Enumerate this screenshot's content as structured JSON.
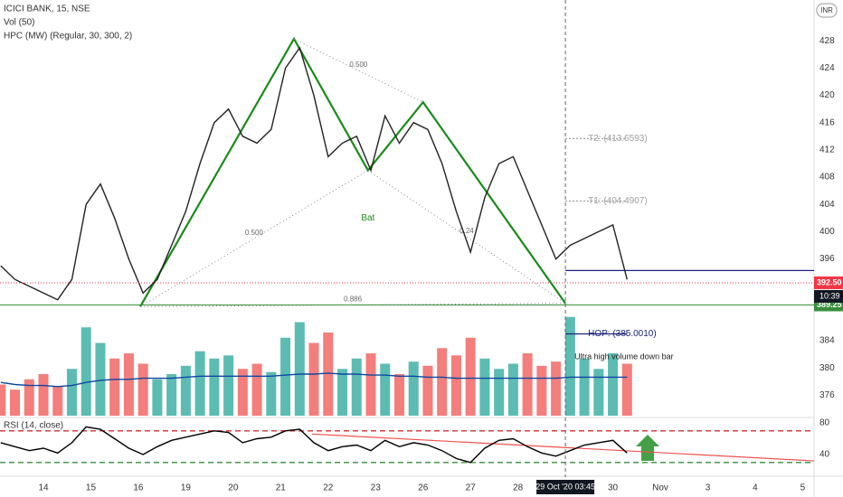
{
  "chart_data": [
    {
      "type": "line",
      "title": "ICICI BANK, 15, NSE",
      "subtitle": "Vol (50)",
      "indicator": "HPC (MW) (Regular, 30, 300, 2)",
      "currency": "INR",
      "color": "#222222",
      "x": [
        -0.9,
        -0.6,
        -0.3,
        0,
        0.3,
        0.6,
        0.9,
        1.2,
        1.5,
        1.8,
        2.1,
        2.4,
        2.7,
        3.0,
        3.3,
        3.6,
        3.9,
        4.2,
        4.5,
        4.8,
        5.1,
        5.4,
        5.7,
        6.0,
        6.3,
        6.6,
        6.9,
        7.2,
        7.5,
        7.8,
        8.1,
        8.4,
        8.7,
        9.0,
        9.3,
        9.6,
        9.9,
        10.2,
        10.5,
        10.8,
        11.1,
        11.4,
        11.7,
        12.0,
        12.3
      ],
      "values": [
        395,
        393,
        392,
        391,
        390,
        393,
        404,
        407,
        402,
        396,
        391,
        393,
        398,
        403,
        410,
        416,
        418,
        414,
        413,
        415,
        424,
        427,
        420,
        411,
        413,
        414,
        409,
        417,
        413,
        416,
        415,
        410,
        403,
        397,
        405,
        410,
        411,
        406,
        401,
        396,
        398,
        399,
        400,
        401,
        393
      ],
      "xlim": [
        -0.915,
        16.24
      ],
      "ylim": [
        373,
        434
      ],
      "yticks": [
        428,
        424,
        420,
        416,
        412,
        408,
        404,
        400,
        396,
        384,
        380,
        376
      ],
      "markers": [
        {
          "value": 392.5,
          "label": "392.50",
          "color": "#f23645"
        },
        {
          "value": 389.25,
          "label": "389.25",
          "color": "#388e3c"
        }
      ],
      "countdown": "10:39",
      "levels": [
        {
          "value": 413.6593,
          "label": "T2: (413.6593)",
          "color": "#9e9e9e"
        },
        {
          "value": 404.4907,
          "label": "T1: (404.4907)",
          "color": "#9e9e9e"
        },
        {
          "value": 385.001,
          "label": "HOP: (385.0010)",
          "color": "#1a237e"
        },
        {
          "value": 394.3,
          "color": "#1a237e"
        }
      ],
      "pattern": {
        "label": "Bat",
        "color": "#1b8a1b",
        "x": [
          2.04,
          5.28,
          6.84,
          8.0,
          11.0
        ],
        "y": [
          389,
          428.3,
          409,
          419,
          389.5
        ],
        "ratios": [
          "0.500",
          "0.500",
          "0.886",
          "0.24"
        ]
      },
      "annotation": "Ultra high volume down bar"
    },
    {
      "type": "bar",
      "ylim": [
        0,
        100
      ],
      "x": [
        -0.9,
        -0.6,
        -0.3,
        0,
        0.3,
        0.6,
        0.9,
        1.2,
        1.5,
        1.8,
        2.1,
        2.4,
        2.7,
        3.0,
        3.3,
        3.6,
        3.9,
        4.2,
        4.5,
        4.8,
        5.1,
        5.4,
        5.7,
        6.0,
        6.3,
        6.6,
        6.9,
        7.2,
        7.5,
        7.8,
        8.1,
        8.4,
        8.7,
        9.0,
        9.3,
        9.6,
        9.9,
        10.2,
        10.5,
        10.8,
        11.1,
        11.4,
        11.7,
        12.0,
        12.3
      ],
      "values": [
        30,
        25,
        35,
        40,
        28,
        45,
        85,
        70,
        55,
        60,
        50,
        35,
        40,
        48,
        62,
        55,
        58,
        45,
        50,
        42,
        75,
        90,
        70,
        80,
        45,
        55,
        60,
        50,
        40,
        52,
        48,
        65,
        58,
        75,
        55,
        45,
        50,
        60,
        48,
        52,
        95,
        55,
        45,
        60,
        50
      ],
      "colors": [
        "#ef5350",
        "#ef5350",
        "#ef5350",
        "#ef5350",
        "#ef5350",
        "#26a69a",
        "#26a69a",
        "#26a69a",
        "#ef5350",
        "#ef5350",
        "#ef5350",
        "#26a69a",
        "#26a69a",
        "#26a69a",
        "#26a69a",
        "#26a69a",
        "#26a69a",
        "#ef5350",
        "#ef5350",
        "#26a69a",
        "#26a69a",
        "#26a69a",
        "#ef5350",
        "#ef5350",
        "#26a69a",
        "#26a69a",
        "#ef5350",
        "#26a69a",
        "#ef5350",
        "#26a69a",
        "#ef5350",
        "#ef5350",
        "#ef5350",
        "#ef5350",
        "#26a69a",
        "#26a69a",
        "#26a69a",
        "#ef5350",
        "#ef5350",
        "#ef5350",
        "#26a69a",
        "#26a69a",
        "#26a69a",
        "#26a69a",
        "#ef5350"
      ],
      "ma": [
        32,
        30,
        29,
        29,
        28,
        29,
        32,
        34,
        35,
        35,
        36,
        36,
        36,
        37,
        38,
        38,
        38,
        38,
        38,
        38,
        39,
        40,
        40,
        41,
        40,
        40,
        39,
        39,
        38,
        38,
        37,
        37,
        36,
        36,
        36,
        36,
        36,
        36,
        36,
        36,
        37,
        37,
        37,
        37,
        37
      ],
      "ma_color": "#0d47a1"
    },
    {
      "type": "line",
      "title": "RSI (14, close)",
      "color": "#000000",
      "x": [
        -0.9,
        -0.6,
        -0.3,
        0,
        0.3,
        0.6,
        0.9,
        1.2,
        1.5,
        1.8,
        2.1,
        2.4,
        2.7,
        3.0,
        3.3,
        3.6,
        3.9,
        4.2,
        4.5,
        4.8,
        5.1,
        5.4,
        5.7,
        6.0,
        6.3,
        6.6,
        6.9,
        7.2,
        7.5,
        7.8,
        8.1,
        8.4,
        8.7,
        9.0,
        9.3,
        9.6,
        9.9,
        10.2,
        10.5,
        10.8,
        11.1,
        11.4,
        11.7,
        12.0,
        12.3
      ],
      "values": [
        55,
        50,
        45,
        48,
        42,
        55,
        75,
        72,
        60,
        48,
        40,
        50,
        58,
        62,
        66,
        70,
        68,
        55,
        60,
        62,
        70,
        72,
        55,
        45,
        50,
        52,
        45,
        58,
        50,
        55,
        52,
        45,
        35,
        30,
        48,
        58,
        60,
        50,
        42,
        38,
        45,
        52,
        55,
        58,
        42
      ],
      "xlim": [
        -0.915,
        16.24
      ],
      "ylim": [
        14.9,
        86.9
      ],
      "yticks": [
        80,
        40
      ],
      "bands": [
        {
          "value": 70,
          "color": "#d32f2f"
        },
        {
          "value": 30,
          "color": "#388e3c"
        }
      ],
      "trendline": {
        "x": [
          5.66,
          16.24
        ],
        "y": [
          66,
          32
        ],
        "color": "#ef5350"
      },
      "xticks": [
        {
          "value": 0,
          "label": "14"
        },
        {
          "value": 1,
          "label": "15"
        },
        {
          "value": 2,
          "label": "16"
        },
        {
          "value": 3,
          "label": "19"
        },
        {
          "value": 4,
          "label": "20"
        },
        {
          "value": 5,
          "label": "21"
        },
        {
          "value": 6,
          "label": "22"
        },
        {
          "value": 7,
          "label": "23"
        },
        {
          "value": 8,
          "label": "26"
        },
        {
          "value": 9,
          "label": "27"
        },
        {
          "value": 10,
          "label": "28"
        },
        {
          "value": 12,
          "label": "30"
        },
        {
          "value": 13,
          "label": "Nov"
        },
        {
          "value": 14,
          "label": "3"
        },
        {
          "value": 15,
          "label": "4"
        },
        {
          "value": 16,
          "label": "5"
        }
      ],
      "crosshair": {
        "x": 11,
        "label": "29 Oct '20  03:45"
      }
    }
  ]
}
